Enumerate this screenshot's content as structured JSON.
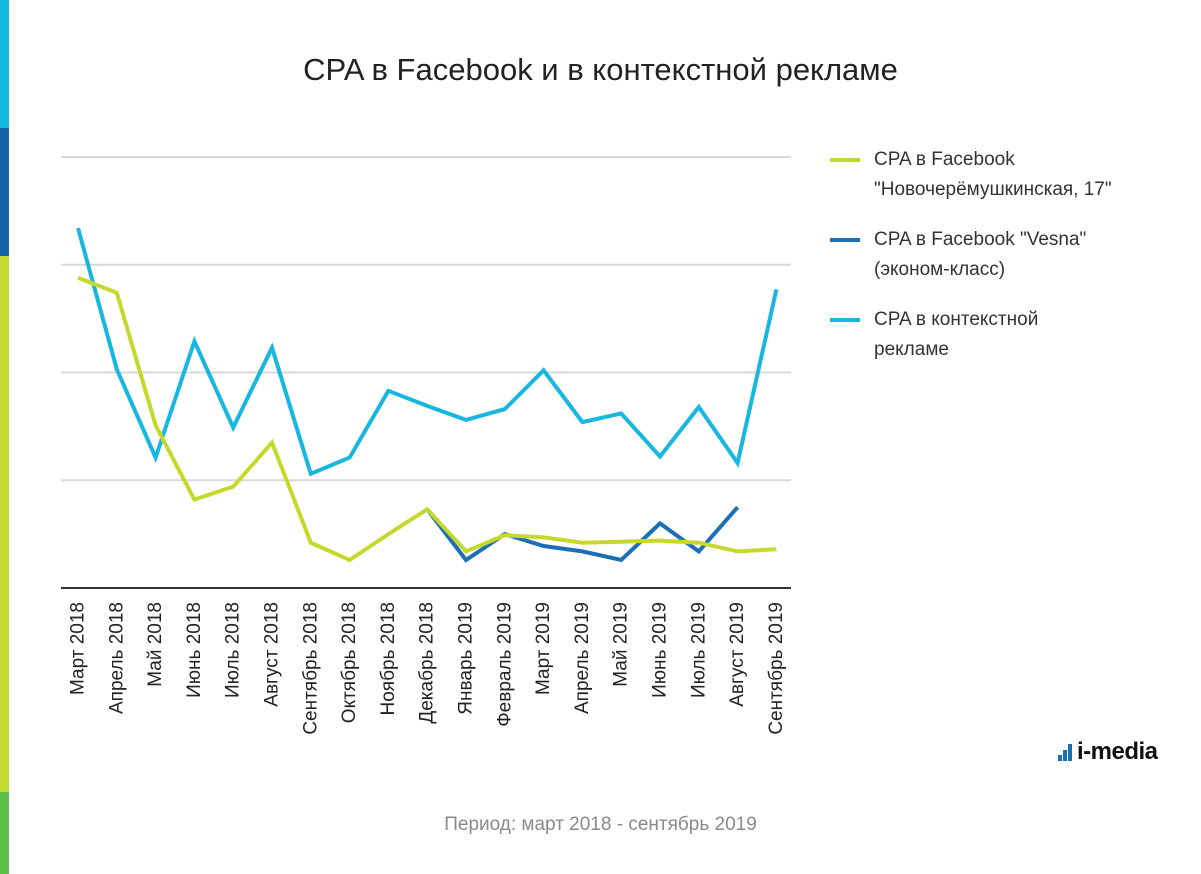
{
  "brand_colors": {
    "stripe_cyan": "#12b9e0",
    "stripe_blue": "#1563a8",
    "stripe_lime": "#c5d92c",
    "stripe_green": "#5cbf4a"
  },
  "logo": {
    "text": "i-media"
  },
  "footer": {
    "period": "Период: март 2018 - сентябрь 2019"
  },
  "legend": [
    {
      "label": "CPA в Facebook\n\"Новочерёмушкинская, 17\"",
      "color": "#c5d92c"
    },
    {
      "label": "CPA в Facebook \"Vesna\"\n(эконом-класс)",
      "color": "#1c6fb5"
    },
    {
      "label": "CPA в контекстной\nрекламе",
      "color": "#17b7e0"
    }
  ],
  "chart_data": {
    "type": "line",
    "title": "CPA в Facebook и в контекстной рекламе",
    "xlabel": "",
    "ylabel": "",
    "ylim": [
      0,
      4
    ],
    "y_gridlines": [
      1,
      2,
      3,
      4
    ],
    "y_tick_labels_shown": false,
    "categories": [
      "Март 2018",
      "Апрель 2018",
      "Май 2018",
      "Июнь 2018",
      "Июль 2018",
      "Август 2018",
      "Сентябрь 2018",
      "Октябрь 2018",
      "Ноябрь 2018",
      "Декабрь 2018",
      "Январь 2019",
      "Февраль 2019",
      "Март 2019",
      "Апрель 2019",
      "Май 2019",
      "Июнь 2019",
      "Июль 2019",
      "Август 2019",
      "Сентябрь 2019"
    ],
    "series": [
      {
        "name": "CPA в контекстной рекламе",
        "color": "#17b7e0",
        "values": [
          3.34,
          2.03,
          1.21,
          2.29,
          1.49,
          2.23,
          1.06,
          1.21,
          1.83,
          1.69,
          1.56,
          1.66,
          2.02,
          1.54,
          1.62,
          1.22,
          1.68,
          1.16,
          2.77
        ]
      },
      {
        "name": "CPA в Facebook \"Vesna\" (эконом-класс)",
        "color": "#1c6fb5",
        "values": [
          null,
          null,
          null,
          null,
          null,
          null,
          null,
          null,
          null,
          0.73,
          0.26,
          0.5,
          0.39,
          0.34,
          0.26,
          0.6,
          0.34,
          0.75,
          null
        ]
      },
      {
        "name": "CPA в Facebook \"Новочерёмушкинская, 17\"",
        "color": "#c5d92c",
        "values": [
          2.88,
          2.74,
          1.51,
          0.82,
          0.94,
          1.35,
          0.42,
          0.26,
          0.5,
          0.73,
          0.34,
          0.49,
          0.47,
          0.42,
          0.43,
          0.44,
          0.42,
          0.34,
          0.36
        ]
      }
    ]
  }
}
